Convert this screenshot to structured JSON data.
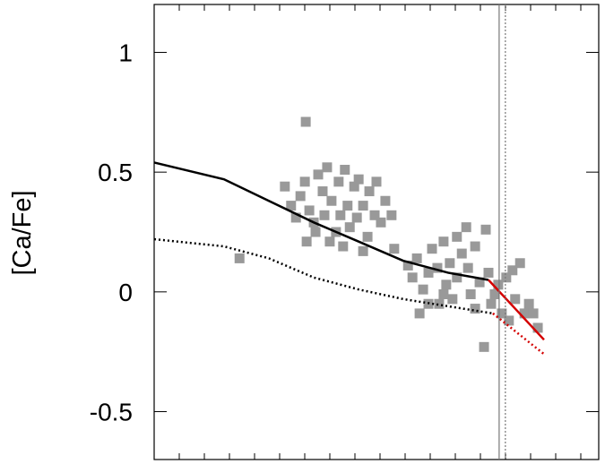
{
  "chart_data": {
    "type": "scatter",
    "ylabel": "[Ca/Fe]",
    "xlim": [
      0,
      1
    ],
    "ylim": [
      -0.7,
      1.2
    ],
    "yticks": [
      -0.5,
      0,
      0.5,
      1
    ],
    "points": {
      "color": "#999999",
      "x": [
        0.341,
        0.192,
        0.294,
        0.308,
        0.319,
        0.329,
        0.339,
        0.349,
        0.359,
        0.369,
        0.379,
        0.383,
        0.389,
        0.399,
        0.409,
        0.415,
        0.419,
        0.429,
        0.435,
        0.44,
        0.45,
        0.456,
        0.46,
        0.47,
        0.48,
        0.484,
        0.496,
        0.5,
        0.51,
        0.52,
        0.534,
        0.54,
        0.343,
        0.363,
        0.395,
        0.425,
        0.47,
        0.571,
        0.581,
        0.591,
        0.597,
        0.605,
        0.617,
        0.625,
        0.637,
        0.641,
        0.651,
        0.657,
        0.665,
        0.671,
        0.681,
        0.692,
        0.702,
        0.706,
        0.712,
        0.722,
        0.732,
        0.742,
        0.746,
        0.752,
        0.758,
        0.766,
        0.774,
        0.782,
        0.792,
        0.798,
        0.806,
        0.812,
        0.823,
        0.833,
        0.843,
        0.853,
        0.863,
        0.617,
        0.651,
        0.681,
        0.722
      ],
      "y": [
        0.71,
        0.14,
        0.44,
        0.36,
        0.31,
        0.4,
        0.46,
        0.34,
        0.29,
        0.49,
        0.42,
        0.32,
        0.52,
        0.38,
        0.25,
        0.46,
        0.32,
        0.51,
        0.36,
        0.27,
        0.44,
        0.31,
        0.47,
        0.36,
        0.23,
        0.42,
        0.32,
        0.46,
        0.29,
        0.38,
        0.32,
        0.18,
        0.21,
        0.25,
        0.21,
        0.19,
        0.17,
        0.11,
        0.06,
        0.14,
        -0.09,
        0.01,
        0.08,
        0.18,
        0.1,
        -0.05,
        0.21,
        0.03,
        0.12,
        -0.03,
        0.06,
        0.16,
        0.27,
        0.1,
        -0.01,
        0.19,
        0.04,
        -0.23,
        0.26,
        0.08,
        -0.05,
        -0.01,
        0.03,
        -0.09,
        0.06,
        -0.12,
        0.09,
        -0.03,
        0.12,
        -0.09,
        -0.05,
        -0.09,
        -0.15,
        -0.05,
        -0.01,
        0.23,
        -0.07
      ]
    },
    "lines": [
      {
        "color": "#000000",
        "dashed": false,
        "x": [
          0,
          0.157,
          0.258,
          0.359,
          0.46,
          0.56,
          0.661,
          0.752
        ],
        "y": [
          0.54,
          0.47,
          0.38,
          0.29,
          0.21,
          0.13,
          0.08,
          0.05
        ]
      },
      {
        "color": "#000000",
        "dashed": true,
        "x": [
          0,
          0.157,
          0.258,
          0.359,
          0.46,
          0.56,
          0.661,
          0.762
        ],
        "y": [
          0.22,
          0.19,
          0.14,
          0.06,
          0.01,
          -0.03,
          -0.06,
          -0.09
        ]
      },
      {
        "color": "#d40000",
        "dashed": false,
        "x": [
          0.752,
          0.802,
          0.877
        ],
        "y": [
          0.05,
          -0.05,
          -0.2
        ]
      },
      {
        "color": "#d40000",
        "dashed": true,
        "x": [
          0.762,
          0.877
        ],
        "y": [
          -0.09,
          -0.26
        ]
      }
    ],
    "vlines": [
      {
        "value": 0.776,
        "dashed": false,
        "color": "#777777"
      },
      {
        "value": 0.79,
        "dashed": true,
        "color": "#777777"
      }
    ]
  }
}
